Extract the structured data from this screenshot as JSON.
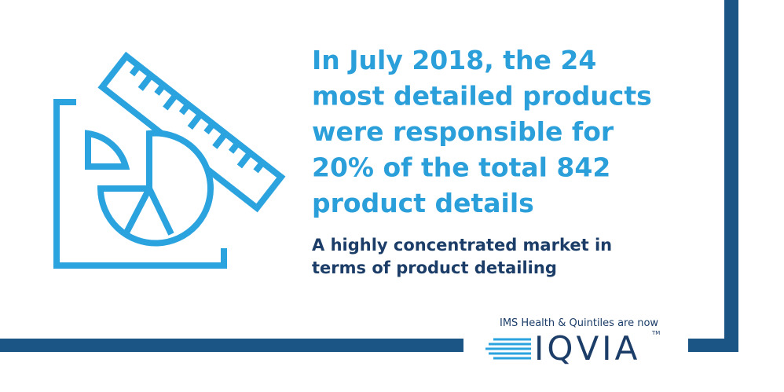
{
  "headline": {
    "lines": [
      "In July 2018, the 24",
      "most detailed products",
      "were responsible for",
      "20% of the total 842",
      "product details"
    ]
  },
  "subtitle": {
    "lines": [
      "A highly concentrated market in",
      "terms of product detailing"
    ]
  },
  "logo": {
    "tagline": "IMS Health & Quintiles are now",
    "name": "IQVIA",
    "trademark": "TM"
  }
}
